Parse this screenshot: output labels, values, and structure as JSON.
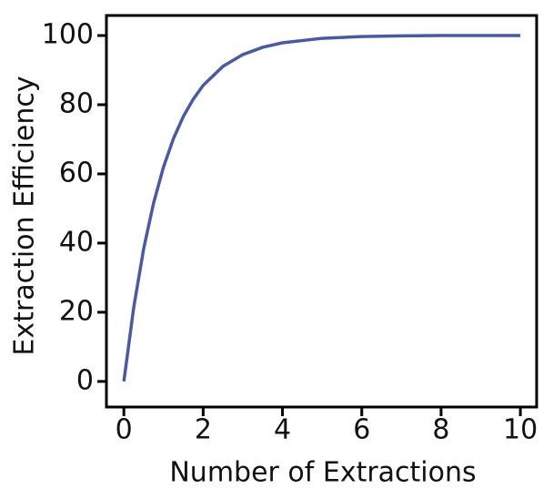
{
  "chart_data": {
    "type": "line",
    "x_label": "Number of Extractions",
    "y_label": "Extraction Efficiency",
    "x": [
      0,
      0.25,
      0.5,
      0.75,
      1,
      1.25,
      1.5,
      1.75,
      2,
      2.5,
      3,
      3.5,
      4,
      5,
      6,
      7,
      8,
      9,
      10
    ],
    "series": [
      {
        "color": "#4a5aa0",
        "values": [
          0,
          21.5,
          38.4,
          51.6,
          62,
          70.2,
          76.6,
          81.6,
          85.6,
          91.1,
          94.5,
          96.6,
          97.9,
          99.2,
          99.7,
          99.9,
          100,
          100,
          100
        ]
      }
    ],
    "xlim": [
      -0.44,
      10.41
    ],
    "ylim": [
      -7.4,
      105.8
    ],
    "xticks": [
      0,
      2,
      4,
      6,
      8,
      10
    ],
    "yticks": [
      0,
      20,
      40,
      60,
      80,
      100
    ]
  }
}
